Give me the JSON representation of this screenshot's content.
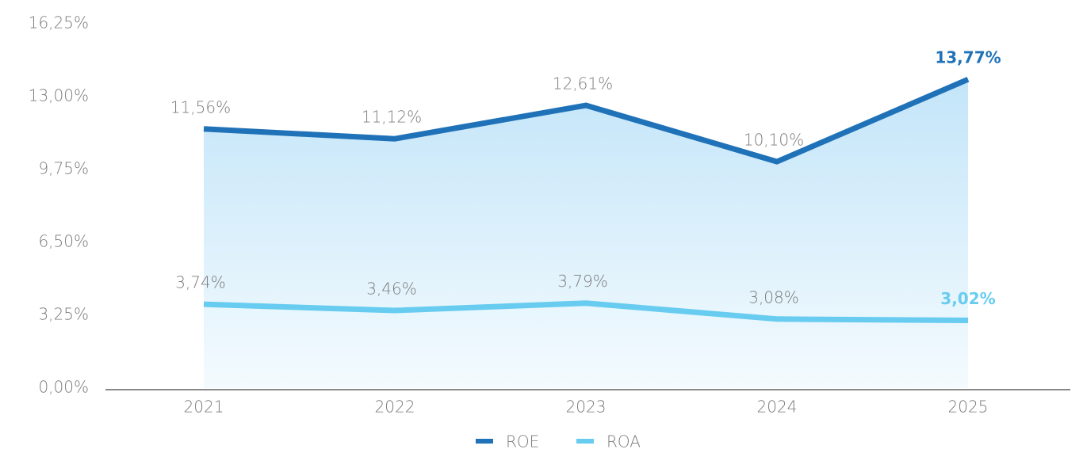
{
  "chart_data": {
    "type": "line",
    "categories": [
      "2021",
      "2022",
      "2023",
      "2024",
      "2025"
    ],
    "series": [
      {
        "name": "ROE",
        "color": "#1f72b8",
        "values": [
          11.56,
          11.12,
          12.61,
          10.1,
          13.77
        ],
        "value_labels": [
          "11,56%",
          "11,12%",
          "12,61%",
          "10,10%",
          "13,77%"
        ]
      },
      {
        "name": "ROA",
        "color": "#67ccf0",
        "values": [
          3.74,
          3.46,
          3.79,
          3.08,
          3.02
        ],
        "value_labels": [
          "3,74%",
          "3,46%",
          "3,79%",
          "3,08%",
          "3,02%"
        ]
      }
    ],
    "ylim": [
      0,
      16.25
    ],
    "yticks": [
      {
        "value": 0,
        "label": "0,00%"
      },
      {
        "value": 3.25,
        "label": "3,25%"
      },
      {
        "value": 6.5,
        "label": "6,50%"
      },
      {
        "value": 9.75,
        "label": "9,75%"
      },
      {
        "value": 13,
        "label": "13,00%"
      },
      {
        "value": 16.25,
        "label": "16,25%"
      }
    ],
    "legend": "bottom"
  }
}
